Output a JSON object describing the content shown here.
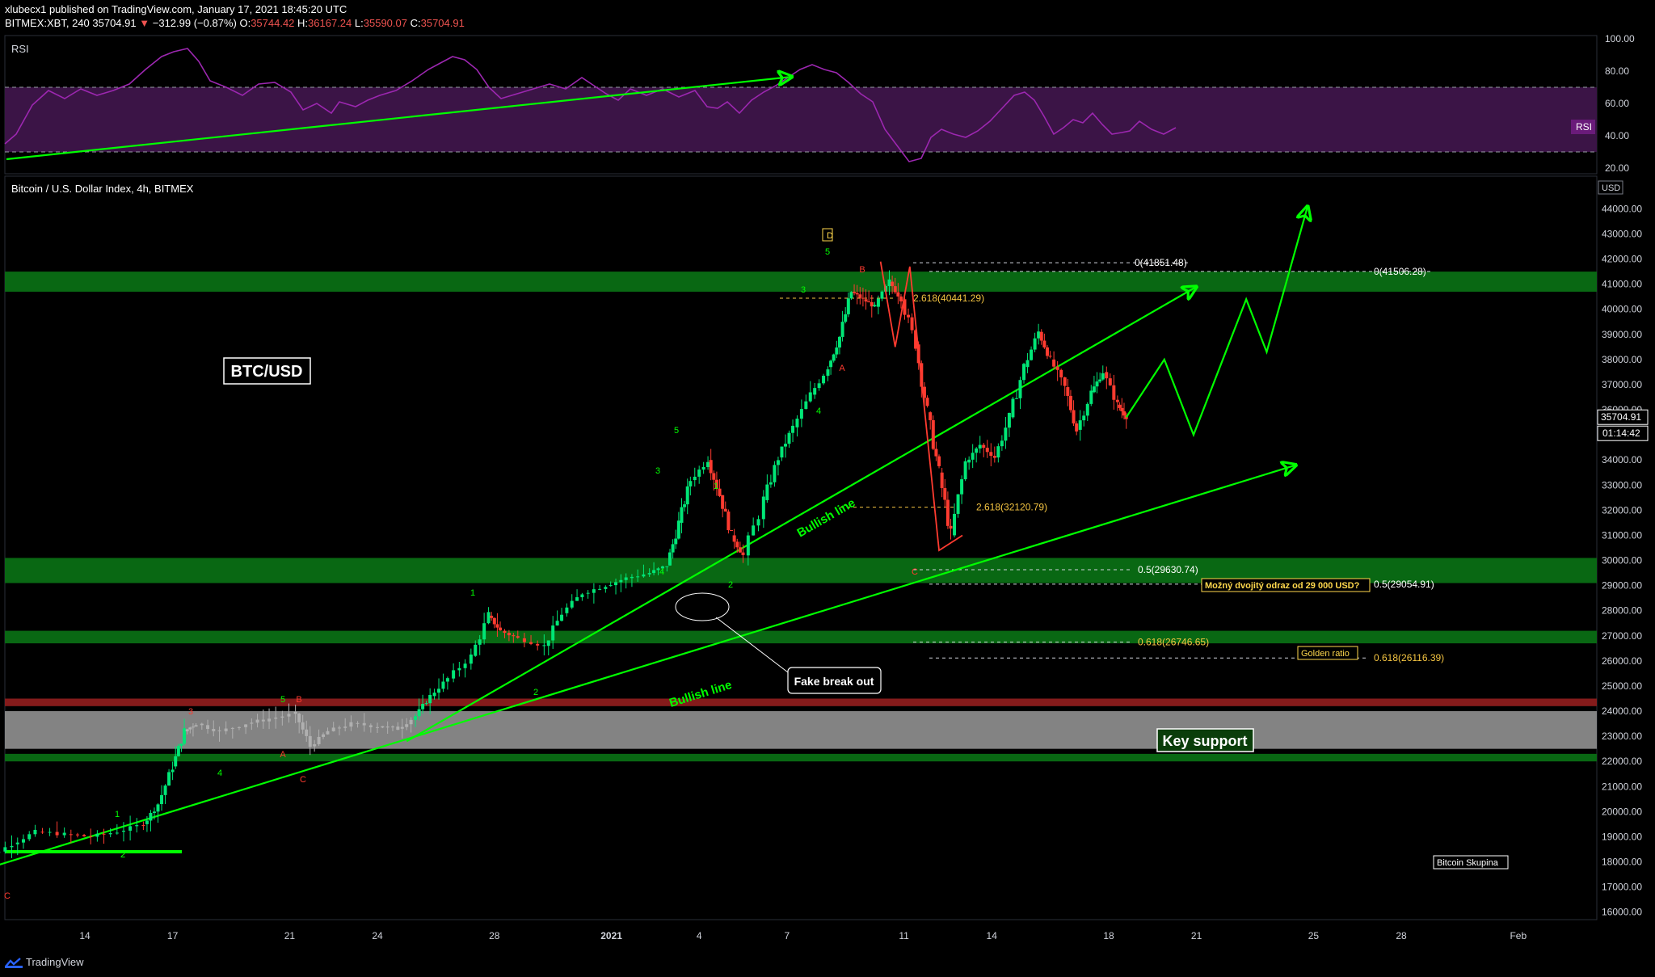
{
  "header": {
    "publisher": "xlubecx1",
    "published_text": "published on TradingView.com, January 17, 2021 18:45:20 UTC",
    "symbol": "BITMEX:XBT, 240",
    "last_price": "35704.91",
    "change": "−312.99 (−0.87%)",
    "open_label": "O:",
    "open": "35744.42",
    "high_label": "H:",
    "high": "36167.24",
    "low_label": "L:",
    "low": "35590.07",
    "close_label": "C:",
    "close": "35704.91"
  },
  "footer": {
    "brand": "TradingView"
  },
  "colors": {
    "green": "#00ff00",
    "candle_up": "#00e676",
    "candle_down": "#ff3b30",
    "band_green": "#0a6e14",
    "band_red": "#8c1c1c",
    "band_gray": "#8a8a8a",
    "fib": "#f5c542",
    "rsi": "#9c27b0",
    "rsi_band": "#3b1446"
  },
  "rsi_panel": {
    "label": "RSI",
    "badge": "RSI",
    "ticks": [
      "100.00",
      "80.00",
      "60.00",
      "40.00",
      "20.00"
    ],
    "tick_values": [
      100,
      80,
      60,
      40,
      20
    ],
    "upper_band": 70,
    "lower_band": 30
  },
  "price_panel": {
    "title": "Bitcoin / U.S. Dollar Index, 4h, BITMEX",
    "currency": "USD",
    "price_ticks": [
      "44000.00",
      "43000.00",
      "42000.00",
      "41000.00",
      "40000.00",
      "39000.00",
      "38000.00",
      "37000.00",
      "36000.00",
      "35000.00",
      "34000.00",
      "33000.00",
      "32000.00",
      "31000.00",
      "30000.00",
      "29000.00",
      "28000.00",
      "27000.00",
      "26000.00",
      "25000.00",
      "24000.00",
      "23000.00",
      "22000.00",
      "21000.00",
      "20000.00",
      "19000.00",
      "18000.00",
      "17000.00",
      "16000.00"
    ],
    "last_price_label": "35704.91",
    "countdown": "01:14:42",
    "date_ticks": [
      "14",
      "17",
      "21",
      "24",
      "28",
      "2021",
      "4",
      "7",
      "11",
      "14",
      "18",
      "21",
      "25",
      "28",
      "Feb"
    ]
  },
  "chart_data": {
    "type": "candlestick",
    "title": "Bitcoin / U.S. Dollar Index, 4h, BITMEX",
    "ylim": [
      15700,
      45300
    ],
    "price_ticks": [
      44000,
      43000,
      42000,
      41000,
      40000,
      39000,
      38000,
      37000,
      36000,
      35000,
      34000,
      33000,
      32000,
      31000,
      30000,
      29000,
      28000,
      27000,
      26000,
      25000,
      24000,
      23000,
      22000,
      21000,
      20000,
      19000,
      18000,
      17000,
      16000
    ],
    "x_day_range": [
      10,
      45
    ],
    "x_ticks": [
      {
        "label": "14",
        "day": 14
      },
      {
        "label": "17",
        "day": 17
      },
      {
        "label": "21",
        "day": 21
      },
      {
        "label": "24",
        "day": 24
      },
      {
        "label": "28",
        "day": 28
      },
      {
        "label": "2021",
        "day": 32
      },
      {
        "label": "4",
        "day": 35
      },
      {
        "label": "7",
        "day": 38
      },
      {
        "label": "11",
        "day": 42
      },
      {
        "label": "14",
        "day": 45
      },
      {
        "label": "18",
        "day": 49
      },
      {
        "label": "21",
        "day": 52
      },
      {
        "label": "25",
        "day": 56
      },
      {
        "label": "28",
        "day": 59
      },
      {
        "label": "Feb",
        "day": 63
      }
    ],
    "price_path": [
      [
        10.1,
        17800
      ],
      [
        10.6,
        18200
      ],
      [
        11.5,
        18700
      ],
      [
        12.3,
        19200
      ],
      [
        13.3,
        19100
      ],
      [
        14.2,
        19000
      ],
      [
        15.1,
        19200
      ],
      [
        16.0,
        19500
      ],
      [
        16.5,
        20300
      ],
      [
        17.0,
        21800
      ],
      [
        17.4,
        23200
      ],
      [
        17.8,
        23500
      ],
      [
        18.6,
        23200
      ],
      [
        19.5,
        23500
      ],
      [
        20.3,
        23700
      ],
      [
        21.2,
        23900
      ],
      [
        21.7,
        22600
      ],
      [
        22.3,
        23200
      ],
      [
        23.1,
        23500
      ],
      [
        24.0,
        23400
      ],
      [
        24.7,
        23300
      ],
      [
        25.3,
        23800
      ],
      [
        25.8,
        24600
      ],
      [
        26.4,
        25300
      ],
      [
        27.2,
        26200
      ],
      [
        27.8,
        27800
      ],
      [
        28.2,
        27200
      ],
      [
        28.8,
        26900
      ],
      [
        29.7,
        26600
      ],
      [
        30.3,
        27900
      ],
      [
        31.0,
        28700
      ],
      [
        31.8,
        29000
      ],
      [
        32.5,
        29300
      ],
      [
        33.3,
        29500
      ],
      [
        33.9,
        29800
      ],
      [
        34.3,
        31500
      ],
      [
        34.7,
        33200
      ],
      [
        35.3,
        34000
      ],
      [
        35.7,
        32600
      ],
      [
        36.1,
        31000
      ],
      [
        36.5,
        30200
      ],
      [
        37.2,
        32400
      ],
      [
        37.7,
        34100
      ],
      [
        38.2,
        35300
      ],
      [
        38.8,
        36600
      ],
      [
        39.4,
        37700
      ],
      [
        39.8,
        38900
      ],
      [
        40.2,
        40700
      ],
      [
        40.6,
        40400
      ],
      [
        41.0,
        40100
      ],
      [
        41.5,
        41100
      ],
      [
        41.9,
        40400
      ],
      [
        42.4,
        38600
      ],
      [
        42.8,
        35900
      ],
      [
        43.2,
        33500
      ],
      [
        43.6,
        31000
      ],
      [
        44.1,
        33900
      ],
      [
        44.6,
        34600
      ],
      [
        45.1,
        34100
      ],
      [
        45.6,
        35700
      ],
      [
        46.1,
        37700
      ],
      [
        46.6,
        39100
      ],
      [
        47.0,
        38000
      ],
      [
        47.5,
        36900
      ],
      [
        47.9,
        35200
      ],
      [
        48.4,
        36700
      ],
      [
        48.8,
        37500
      ],
      [
        49.3,
        36200
      ],
      [
        49.6,
        35700
      ]
    ],
    "projection": [
      [
        49.6,
        35700
      ],
      [
        50.9,
        38000
      ],
      [
        51.9,
        35000
      ],
      [
        53.7,
        40400
      ],
      [
        54.4,
        38300
      ],
      [
        55.8,
        44100
      ]
    ],
    "zones": [
      {
        "color": "green",
        "from": 40700,
        "to": 41500
      },
      {
        "color": "green",
        "from": 29100,
        "to": 30100
      },
      {
        "color": "green",
        "from": 26700,
        "to": 27200
      },
      {
        "color": "red",
        "from": 24200,
        "to": 24500
      },
      {
        "color": "gray",
        "from": 22500,
        "to": 24000
      },
      {
        "color": "green",
        "from": 22000,
        "to": 22300
      }
    ],
    "fib_levels": [
      {
        "label": "0(41851.48)",
        "price": 41851.48
      },
      {
        "label": "0(41506.28)",
        "price": 41506.28
      },
      {
        "label": "2.618(40441.29)",
        "price": 40441.29
      },
      {
        "label": "2.618(32120.79)",
        "price": 32120.79
      },
      {
        "label": "0.5(29630.74)",
        "price": 29630.74
      },
      {
        "label": "0.5(29054.91)",
        "price": 29054.91
      },
      {
        "label": "0.618(26746.65)",
        "price": 26746.65
      },
      {
        "label": "0.618(26116.39)",
        "price": 26116.39
      }
    ],
    "trendlines": [
      {
        "label": "Bullish line",
        "from": [
          25.0,
          22800
        ],
        "to": [
          52.0,
          40900
        ]
      },
      {
        "label": "Bullish line",
        "from": [
          10.0,
          17500
        ],
        "to": [
          55.4,
          33800
        ]
      }
    ],
    "wave_labels": [
      "D",
      "5",
      "B",
      "3",
      "A",
      "4",
      "5",
      "3",
      "1",
      "4",
      "2",
      "1",
      "2",
      "C",
      "5",
      "B",
      "3",
      "A",
      "4",
      "C",
      "1",
      "2",
      "2",
      "C"
    ],
    "annotations": [
      {
        "text": "BTC/USD"
      },
      {
        "text": "Key support"
      },
      {
        "text": "Fake break out"
      },
      {
        "text": "Možný dvojitý odraz od 29 000 USD?"
      },
      {
        "text": "Golden ratio"
      },
      {
        "text": "Bitcoin Skupina"
      }
    ]
  }
}
